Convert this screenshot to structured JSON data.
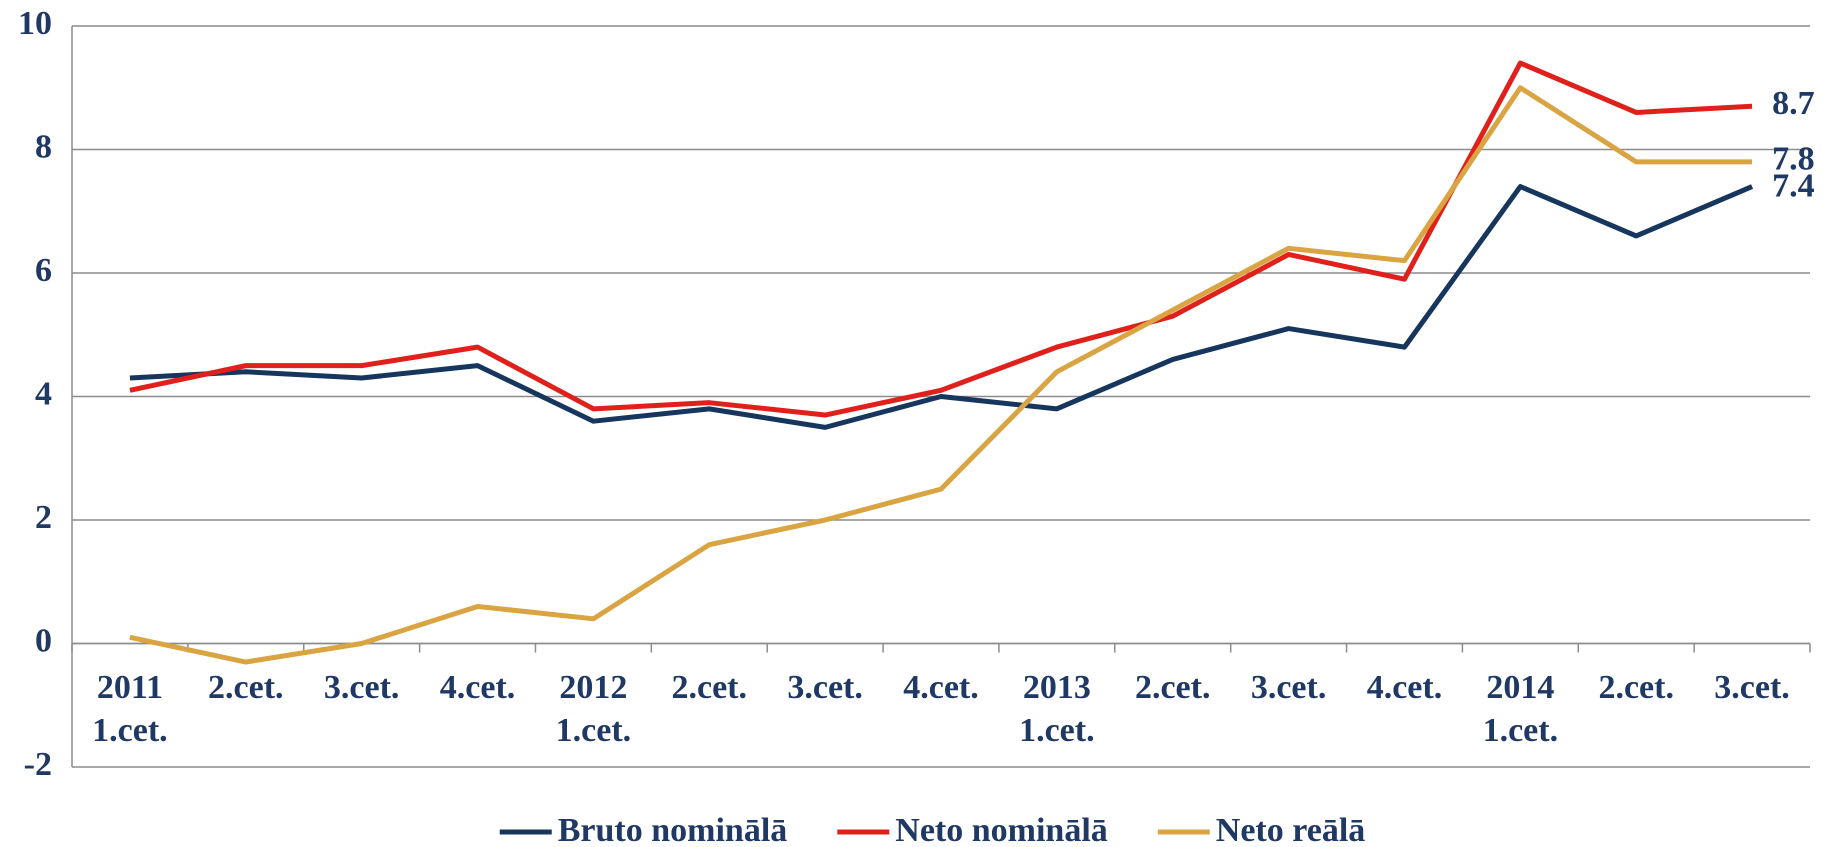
{
  "chart_data": {
    "type": "line",
    "categories": [
      [
        "2011",
        "1.cet."
      ],
      [
        "2.cet."
      ],
      [
        "3.cet."
      ],
      [
        "4.cet."
      ],
      [
        "2012",
        "1.cet."
      ],
      [
        "2.cet."
      ],
      [
        "3.cet."
      ],
      [
        "4.cet."
      ],
      [
        "2013",
        "1.cet."
      ],
      [
        "2.cet."
      ],
      [
        "3.cet."
      ],
      [
        "4.cet."
      ],
      [
        "2014",
        "1.cet."
      ],
      [
        "2.cet."
      ],
      [
        "3.cet."
      ]
    ],
    "series": [
      {
        "name": "Bruto nominālā",
        "color": "#17365d",
        "values": [
          4.3,
          4.4,
          4.3,
          4.5,
          3.6,
          3.8,
          3.5,
          4.0,
          3.8,
          4.6,
          5.1,
          4.8,
          7.4,
          6.6,
          7.4
        ]
      },
      {
        "name": "Neto nominālā",
        "color": "#e0201b",
        "values": [
          4.1,
          4.5,
          4.5,
          4.8,
          3.8,
          3.9,
          3.7,
          4.1,
          4.8,
          5.3,
          6.3,
          5.9,
          9.4,
          8.6,
          8.7
        ]
      },
      {
        "name": "Neto reālā",
        "color": "#d9a441",
        "values": [
          0.1,
          -0.3,
          0.0,
          0.6,
          0.4,
          1.6,
          2.0,
          2.5,
          4.4,
          5.4,
          6.4,
          6.2,
          9.0,
          7.8,
          7.8
        ]
      }
    ],
    "ylim": [
      -2,
      10
    ],
    "yticks": [
      -2,
      0,
      2,
      4,
      6,
      8,
      10
    ],
    "grid": true,
    "data_labels": "last",
    "legend": "bottom"
  }
}
